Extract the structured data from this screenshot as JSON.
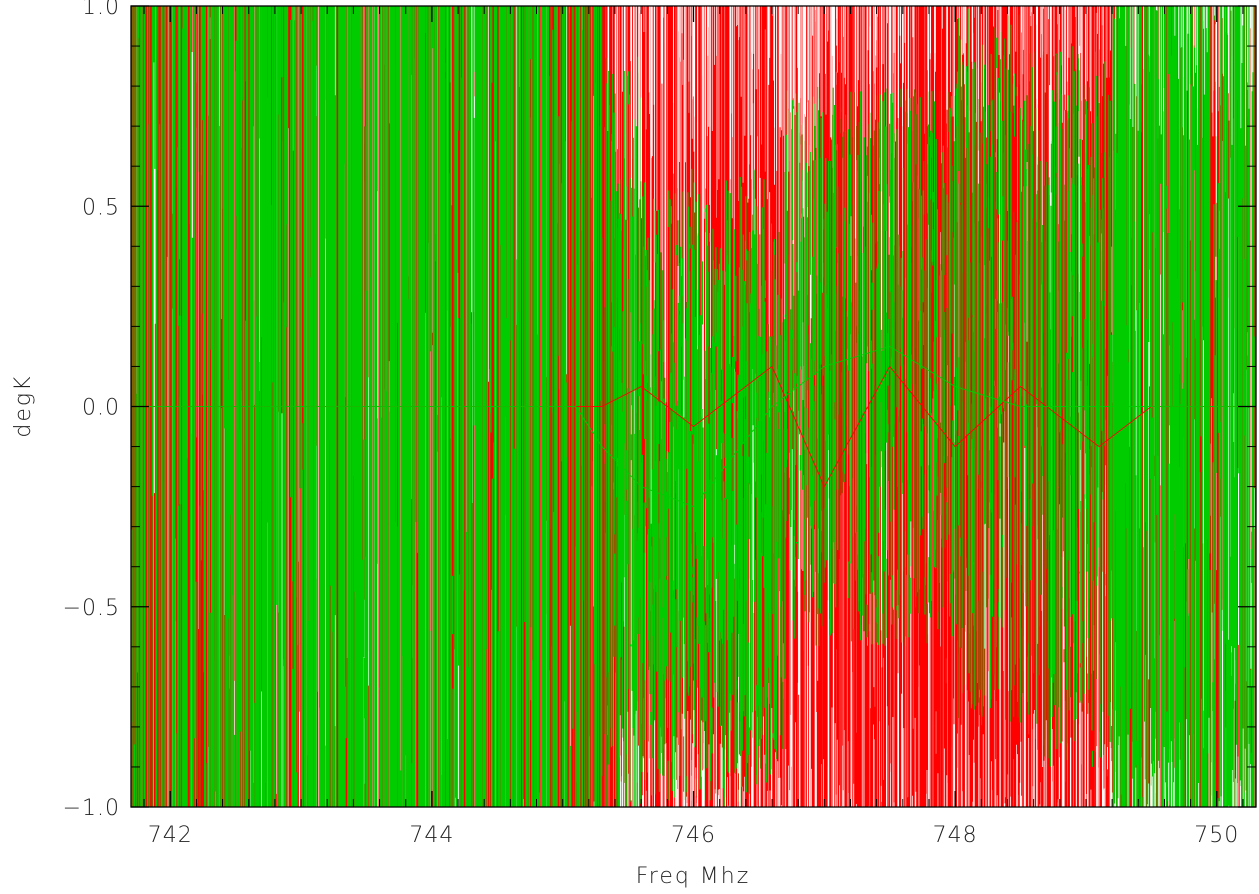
{
  "chart_data": {
    "type": "line",
    "title": "",
    "xlabel": "Freq Mhz",
    "ylabel": "degK",
    "xlim": [
      741.7,
      750.3
    ],
    "ylim": [
      -1.0,
      1.0
    ],
    "x_ticks": [
      742,
      744,
      746,
      748,
      750
    ],
    "x_tick_labels": [
      "742",
      "744",
      "746",
      "748",
      "750"
    ],
    "y_ticks": [
      -1.0,
      -0.5,
      0.0,
      0.5,
      1.0
    ],
    "y_tick_labels": [
      "−1.0",
      "−0.5",
      "0.0",
      "0.5",
      "1.0"
    ],
    "grid": false,
    "legend": "none",
    "series": [
      {
        "color": "#ff0000",
        "description_points": [
          [
            741.7,
            0.0
          ],
          [
            742.2,
            0.0
          ],
          [
            744.9,
            0.0
          ],
          [
            745.1,
            0.0
          ],
          [
            745.3,
            0.0
          ],
          [
            745.6,
            0.05
          ],
          [
            746.0,
            -0.05
          ],
          [
            746.6,
            0.1
          ],
          [
            747.0,
            -0.2
          ],
          [
            747.5,
            0.1
          ],
          [
            748.0,
            -0.1
          ],
          [
            748.5,
            0.05
          ],
          [
            749.1,
            -0.1
          ],
          [
            749.5,
            0.0
          ],
          [
            750.3,
            0.0
          ]
        ]
      },
      {
        "color": "#00cc00",
        "description_points": [
          [
            741.7,
            0.0
          ],
          [
            742.2,
            0.0
          ],
          [
            744.9,
            0.0
          ],
          [
            745.1,
            0.0
          ],
          [
            745.3,
            -0.1
          ],
          [
            745.6,
            -0.2
          ],
          [
            746.0,
            -0.25
          ],
          [
            746.6,
            0.0
          ],
          [
            747.0,
            0.1
          ],
          [
            747.5,
            0.15
          ],
          [
            748.0,
            0.05
          ],
          [
            748.5,
            0.0
          ],
          [
            749.1,
            0.0
          ],
          [
            749.5,
            0.0
          ],
          [
            750.3,
            0.0
          ]
        ]
      }
    ],
    "colors": {
      "red": "#ff0000",
      "green": "#00cc00",
      "axis": "#000000",
      "background": "#ffffff"
    }
  }
}
